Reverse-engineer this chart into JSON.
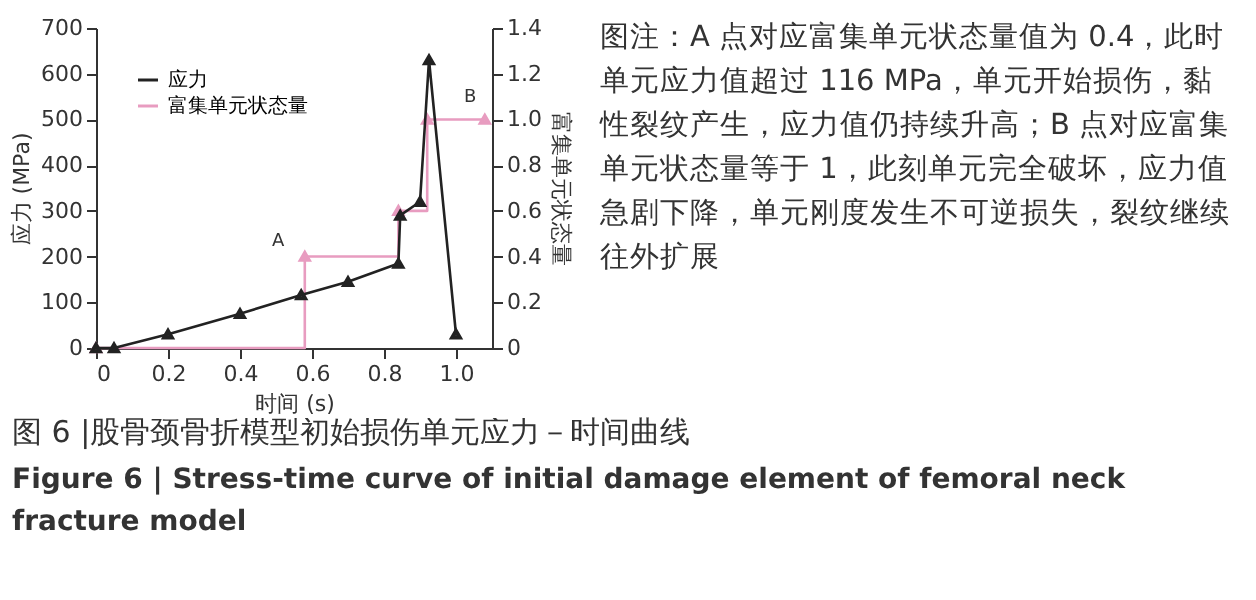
{
  "chart_data": {
    "type": "line",
    "title": "图 6 |股骨颈骨折模型初始损伤单元应力－时间曲线",
    "subtitle": "Figure 6  |  Stress-time curve of initial damage element of femoral neck fracture model",
    "xlabel": "时间 (s)",
    "ylabel": "应力 (MPa)",
    "y2label": "富集单元状态量",
    "xlim": [
      0,
      1.1
    ],
    "xticks": [
      {
        "value": 0,
        "label": "0"
      },
      0.2,
      0.4,
      0.6,
      0.8,
      {
        "value": 1,
        "label": "1.0"
      }
    ],
    "ylim": [
      0,
      700
    ],
    "yticks": [
      0,
      100,
      200,
      300,
      400,
      500,
      600,
      700
    ],
    "y2lim": [
      0,
      1.4
    ],
    "y2ticks": [
      {
        "value": 0,
        "label": "0"
      },
      0.2,
      0.4,
      0.6,
      0.8,
      {
        "value": 1,
        "label": "1.0"
      },
      1.2,
      1.4
    ],
    "legend": "top left",
    "marker": "triangle",
    "grid": false,
    "series": [
      {
        "name": "应力",
        "color": "#222222",
        "x": [
          0,
          0.05,
          0.2,
          0.4,
          0.57,
          0.7,
          0.84,
          0.845,
          0.9,
          0.925,
          1.0
        ],
        "values": [
          0,
          0,
          30,
          75,
          116,
          145,
          185,
          290,
          320,
          630,
          30
        ]
      },
      {
        "name": "富集单元状态量",
        "color": "#e89cc0",
        "type": "step",
        "axis": "y2",
        "x": [
          0,
          0.58,
          0.84,
          0.92,
          1.08
        ],
        "values": [
          0,
          0.4,
          0.6,
          1.0,
          1.0
        ]
      }
    ],
    "annotations": [
      "A",
      "B",
      "图注：A 点对应富集单元状态量值为 0.4，此时单元应力值超过 116 MPa，单元开始损伤，黏性裂纹产生，应力值仍持续升高；B 点对应富集单元状态量等于 1，此刻单元完全破坏，应力值急剧下降，单元刚度发生不可逆损失，裂纹继续往外扩展"
    ]
  }
}
